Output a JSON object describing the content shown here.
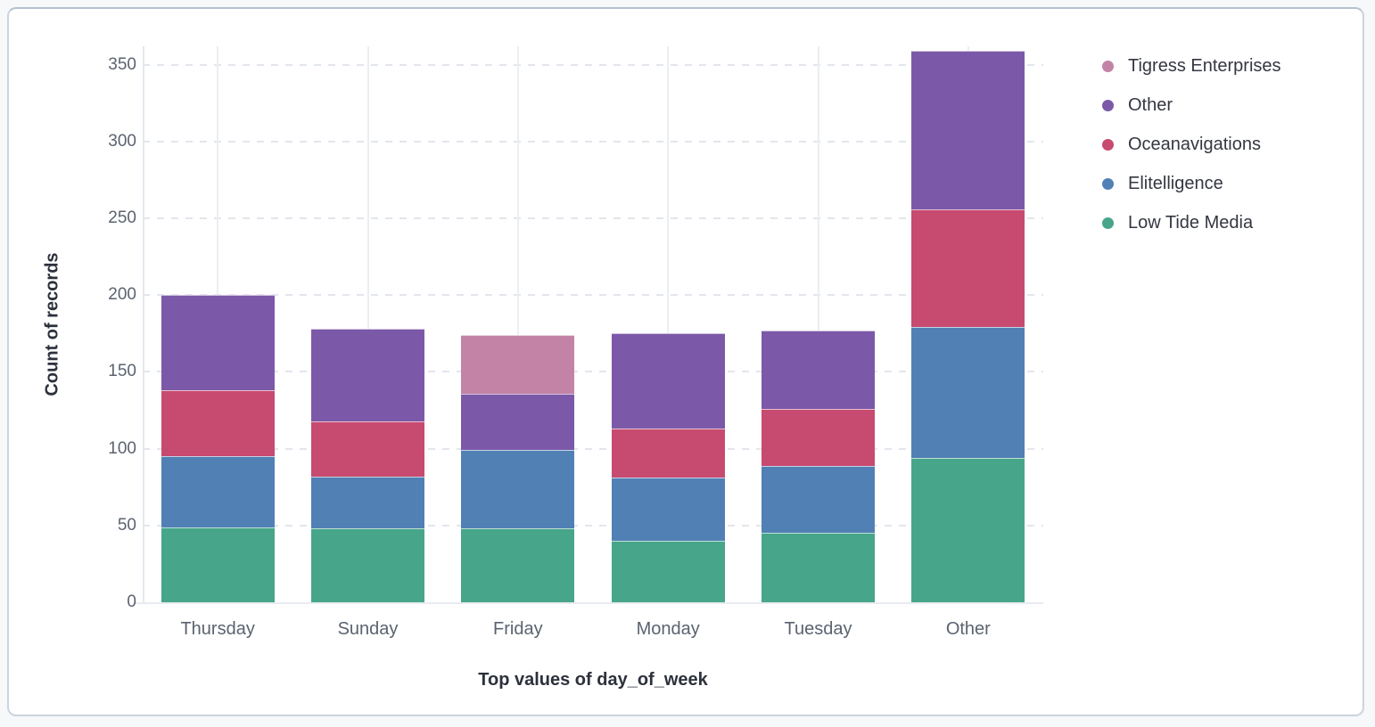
{
  "panel": {
    "background": "#ffffff",
    "border_color": "#ccd4e0"
  },
  "chart_data": {
    "type": "bar",
    "stacked": true,
    "orientation": "vertical",
    "title": "",
    "xlabel": "Top values of day_of_week",
    "ylabel": "Count of records",
    "categories": [
      "Thursday",
      "Sunday",
      "Friday",
      "Monday",
      "Tuesday",
      "Other"
    ],
    "series": [
      {
        "name": "Low Tide Media",
        "color": "#47A589",
        "values": [
          49,
          48,
          48,
          40,
          45,
          94
        ]
      },
      {
        "name": "Elitelligence",
        "color": "#5180B5",
        "values": [
          46,
          34,
          51,
          41,
          44,
          85
        ]
      },
      {
        "name": "Oceanavigations",
        "color": "#C74A70",
        "values": [
          43,
          36,
          0,
          32,
          37,
          77
        ]
      },
      {
        "name": "Other",
        "color": "#7B59A8",
        "values": [
          62,
          60,
          37,
          62,
          51,
          103
        ]
      },
      {
        "name": "Tigress Enterprises",
        "color": "#C383A6",
        "values": [
          0,
          0,
          38,
          0,
          0,
          0
        ]
      }
    ],
    "totals": [
      200,
      178,
      174,
      175,
      177,
      359
    ],
    "y_ticks": [
      0,
      50,
      100,
      150,
      200,
      250,
      300,
      350
    ],
    "ylim": [
      0,
      362
    ],
    "grid": "horizontal-dashed",
    "legend_position": "right",
    "legend": [
      {
        "label": "Tigress Enterprises",
        "color": "#C383A6"
      },
      {
        "label": "Other",
        "color": "#7B59A8"
      },
      {
        "label": "Oceanavigations",
        "color": "#C74A70"
      },
      {
        "label": "Elitelligence",
        "color": "#5180B5"
      },
      {
        "label": "Low Tide Media",
        "color": "#47A589"
      }
    ]
  }
}
